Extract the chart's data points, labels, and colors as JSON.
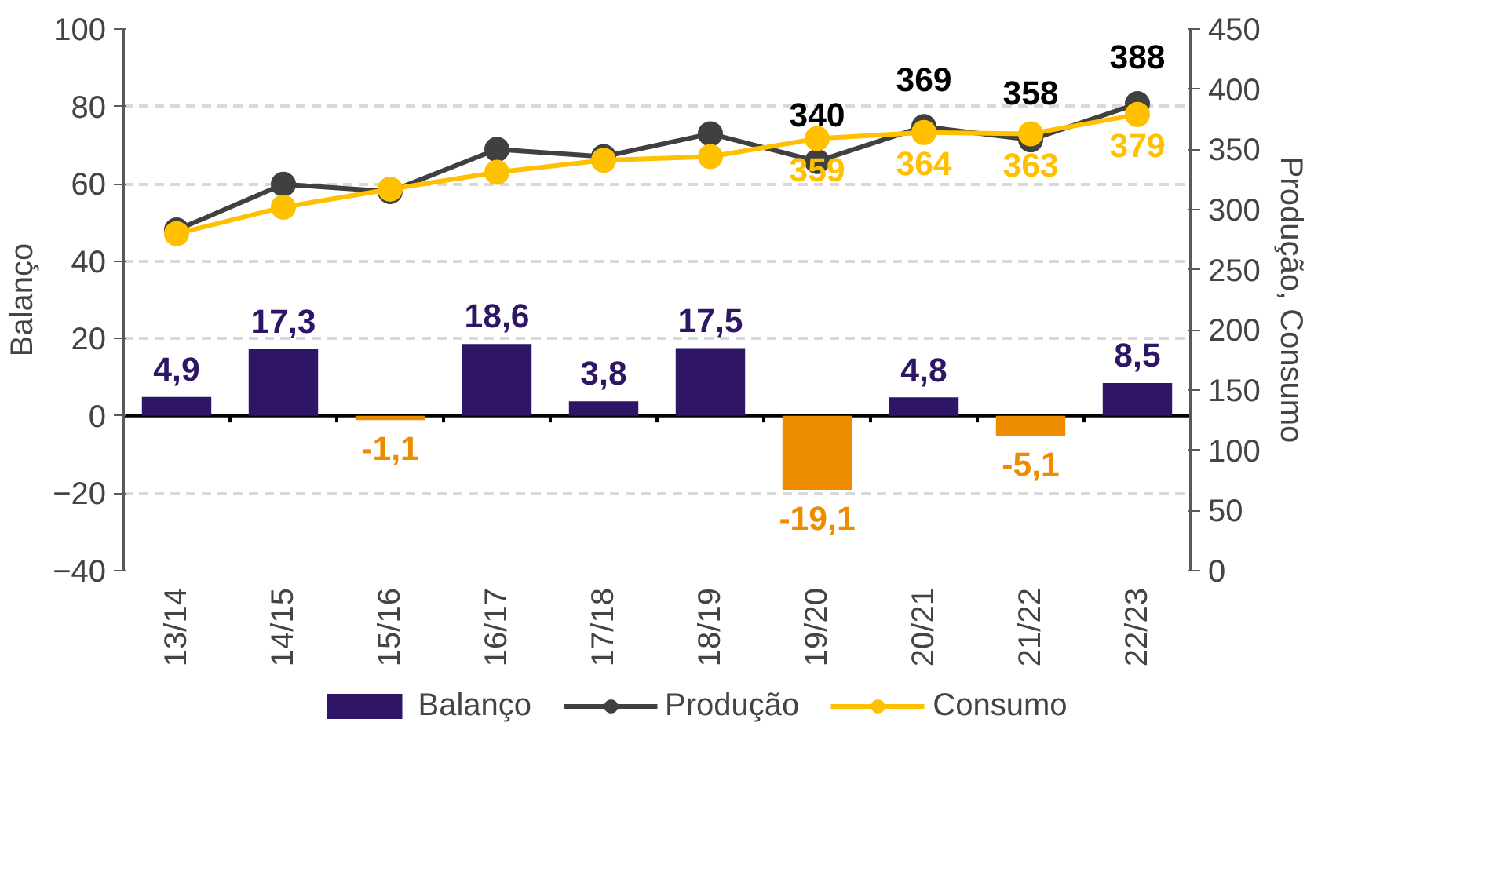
{
  "chart_data": {
    "type": "bar",
    "categories": [
      "13/14",
      "14/15",
      "15/16",
      "16/17",
      "17/18",
      "18/19",
      "19/20",
      "20/21",
      "21/22",
      "22/23"
    ],
    "ylabel": "Balanço",
    "y2label": "Produção, Consumo",
    "ylim": [
      -40,
      100
    ],
    "yticks": [
      -40,
      -20,
      0,
      20,
      40,
      60,
      80,
      100
    ],
    "y2lim": [
      0,
      450
    ],
    "y2ticks": [
      0,
      50,
      100,
      150,
      200,
      250,
      300,
      350,
      400,
      450
    ],
    "grid": "y",
    "legend": "bottom",
    "series": [
      {
        "name": "Balanço",
        "colors": [
          "#2e1566",
          "#2e1566",
          "#ee8c00",
          "#2e1566",
          "#2e1566",
          "#2e1566",
          "#ee8c00",
          "#2e1566",
          "#ee8c00",
          "#2e1566"
        ],
        "values": [
          4.9,
          17.3,
          -1.1,
          18.6,
          3.8,
          17.5,
          -19.1,
          4.8,
          -5.1,
          8.5
        ],
        "value_labels": [
          "4,9",
          "17,3",
          "-1,1",
          "18,6",
          "3,8",
          "17,5",
          "-19,1",
          "4,8",
          "-5,1",
          "8,5"
        ]
      },
      {
        "name": "Produção",
        "type": "line",
        "axis": "y2",
        "marker": "circle",
        "color": "#404040",
        "values": [
          283,
          321,
          315,
          350,
          344,
          363,
          340,
          369,
          358,
          388
        ],
        "value_labels": [
          null,
          null,
          null,
          null,
          null,
          null,
          "340",
          "369",
          "358",
          "388"
        ]
      },
      {
        "name": "Consumo",
        "type": "line",
        "axis": "y2",
        "marker": "circle",
        "color": "#ffc000",
        "values": [
          280,
          302,
          317,
          331,
          341,
          344,
          359,
          364,
          363,
          379
        ],
        "value_labels": [
          null,
          null,
          null,
          null,
          null,
          null,
          "359",
          "364",
          "363",
          "379"
        ]
      }
    ]
  }
}
